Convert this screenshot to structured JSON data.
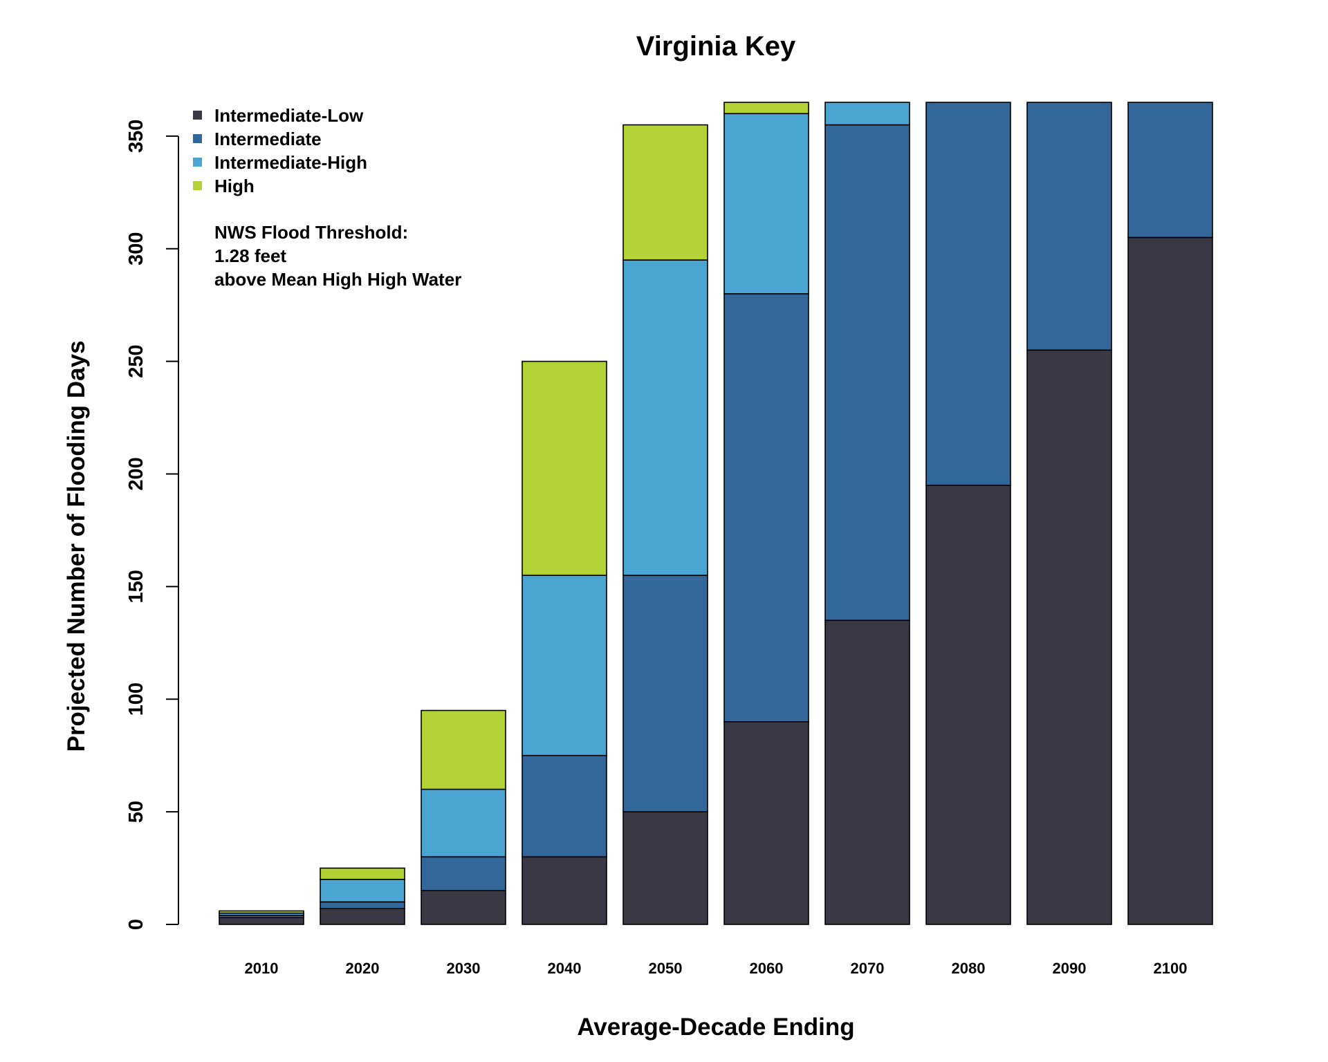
{
  "chart_data": {
    "type": "bar",
    "stacked": true,
    "title": "Virginia Key",
    "xlabel": "Average-Decade Ending",
    "ylabel": "Projected Number of Flooding Days",
    "ylim": [
      0,
      365
    ],
    "yticks": [
      0,
      50,
      100,
      150,
      200,
      250,
      300,
      350
    ],
    "categories": [
      "2010",
      "2020",
      "2030",
      "2040",
      "2050",
      "2060",
      "2070",
      "2080",
      "2090",
      "2100"
    ],
    "series": [
      {
        "name": "Intermediate-Low",
        "color": "#393844",
        "values": [
          3,
          7,
          15,
          30,
          50,
          90,
          135,
          195,
          255,
          305
        ]
      },
      {
        "name": "Intermediate",
        "color": "#336699",
        "values": [
          1,
          3,
          15,
          45,
          105,
          190,
          220,
          170,
          110,
          60
        ]
      },
      {
        "name": "Intermediate-High",
        "color": "#4aa5d3",
        "values": [
          1,
          10,
          30,
          80,
          140,
          80,
          10,
          0,
          0,
          0
        ]
      },
      {
        "name": "High",
        "color": "#b3d235",
        "values": [
          1,
          5,
          35,
          95,
          60,
          5,
          0,
          0,
          0,
          0
        ]
      }
    ],
    "legend_position": "top-left",
    "annotation": [
      "NWS Flood Threshold:",
      "1.28 feet",
      "above Mean High High Water"
    ],
    "grid": false
  }
}
